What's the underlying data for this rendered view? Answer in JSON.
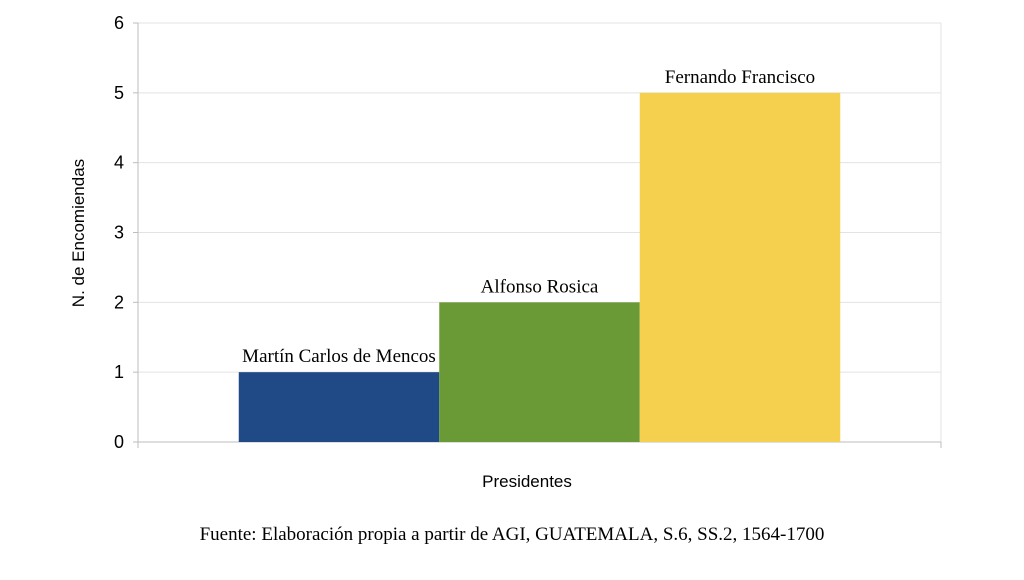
{
  "chart_data": {
    "type": "bar",
    "categories": [
      "Martín Carlos de Mencos",
      "Alfonso Rosica",
      "Fernando Francisco"
    ],
    "values": [
      1,
      2,
      5
    ],
    "colors": [
      "#1f4a85",
      "#6a9a35",
      "#f5d04e"
    ],
    "xlabel": "Presidentes",
    "ylabel": "N. de Encomiendas",
    "ylim": [
      0,
      6
    ],
    "yticks": [
      "0",
      "1",
      "2",
      "3",
      "4",
      "5",
      "6"
    ],
    "grid": true,
    "data_labels": "category names above bars"
  },
  "source_note": "Fuente: Elaboración propia a partir de AGI, GUATEMALA, S.6, SS.2, 1564-1700"
}
